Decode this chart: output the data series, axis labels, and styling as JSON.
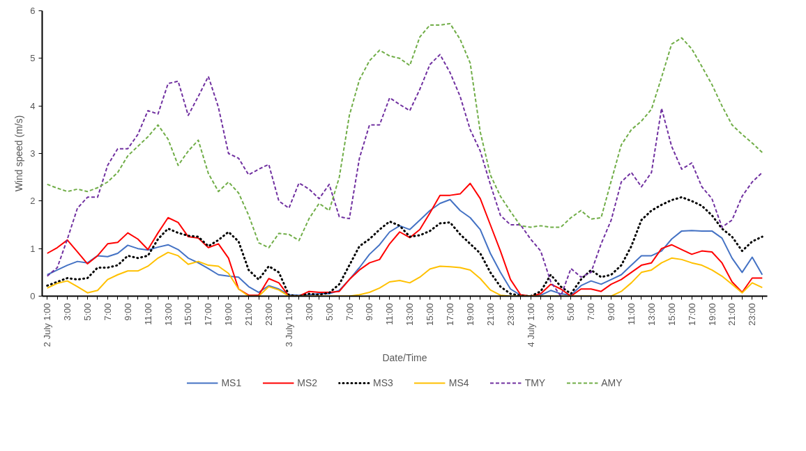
{
  "chart_data": {
    "type": "line",
    "xlabel": "Date/Time",
    "ylabel": "Wind speed (m/s)",
    "categories": [
      "2 July 1:00",
      null,
      "3:00",
      null,
      "5:00",
      null,
      "7:00",
      null,
      "9:00",
      null,
      "11:00",
      null,
      "13:00",
      null,
      "15:00",
      null,
      "17:00",
      null,
      "19:00",
      null,
      "21:00",
      null,
      "23:00",
      null,
      "3 July 1:00",
      null,
      "3:00",
      null,
      "5:00",
      null,
      "7:00",
      null,
      "9:00",
      null,
      "11:00",
      null,
      "13:00",
      null,
      "15:00",
      null,
      "17:00",
      null,
      "19:00",
      null,
      "21:00",
      null,
      "23:00",
      null,
      "4 July 1:00",
      null,
      "3:00",
      null,
      "5:00",
      null,
      "7:00",
      null,
      "9:00",
      null,
      "11:00",
      null,
      "13:00",
      null,
      "15:00",
      null,
      "17:00",
      null,
      "19:00",
      null,
      "21:00",
      null,
      "23:00",
      null
    ],
    "ylim": [
      0,
      6
    ],
    "yticks": [
      0,
      1,
      2,
      3,
      4,
      5,
      6
    ],
    "grid": false,
    "legend": "bottom",
    "marker": "none",
    "series": [
      {
        "name": "MS1",
        "color": "#4472c4",
        "line_style": "solid",
        "values": [
          0.45,
          0.55,
          0.65,
          0.73,
          0.7,
          0.85,
          0.83,
          0.9,
          1.07,
          1.0,
          0.97,
          1.03,
          1.08,
          0.98,
          0.8,
          0.7,
          0.58,
          0.45,
          0.42,
          0.4,
          0.2,
          0.08,
          0.22,
          0.15,
          0.03,
          0.02,
          0.03,
          0.05,
          0.05,
          0.12,
          0.35,
          0.6,
          0.88,
          1.08,
          1.35,
          1.48,
          1.4,
          1.6,
          1.8,
          1.95,
          2.03,
          1.8,
          1.65,
          1.4,
          0.9,
          0.5,
          0.15,
          0.02,
          0.0,
          0.02,
          0.12,
          0.05,
          0.02,
          0.22,
          0.32,
          0.25,
          0.35,
          0.45,
          0.65,
          0.85,
          0.85,
          0.95,
          1.2,
          1.37,
          1.38,
          1.37,
          1.37,
          1.22,
          0.8,
          0.5,
          0.82,
          0.45
        ]
      },
      {
        "name": "MS2",
        "color": "#ff0000",
        "line_style": "solid",
        "values": [
          0.9,
          1.02,
          1.18,
          0.93,
          0.68,
          0.85,
          1.1,
          1.13,
          1.33,
          1.2,
          0.98,
          1.33,
          1.65,
          1.55,
          1.25,
          1.22,
          1.02,
          1.1,
          0.8,
          0.15,
          0.02,
          0.02,
          0.37,
          0.28,
          0.0,
          0.0,
          0.1,
          0.08,
          0.08,
          0.1,
          0.35,
          0.55,
          0.7,
          0.77,
          1.1,
          1.35,
          1.23,
          1.4,
          1.75,
          2.12,
          2.12,
          2.15,
          2.37,
          2.05,
          1.5,
          0.95,
          0.35,
          0.03,
          0.0,
          0.05,
          0.25,
          0.15,
          0.0,
          0.15,
          0.15,
          0.1,
          0.25,
          0.35,
          0.5,
          0.65,
          0.7,
          1.0,
          1.08,
          0.98,
          0.88,
          0.95,
          0.93,
          0.7,
          0.3,
          0.08,
          0.38,
          0.38
        ]
      },
      {
        "name": "MS3",
        "color": "#000000",
        "line_style": "dotted",
        "values": [
          0.22,
          0.3,
          0.38,
          0.35,
          0.38,
          0.6,
          0.6,
          0.65,
          0.85,
          0.8,
          0.85,
          1.2,
          1.42,
          1.33,
          1.27,
          1.25,
          1.05,
          1.18,
          1.35,
          1.15,
          0.55,
          0.35,
          0.63,
          0.5,
          0.02,
          0.0,
          0.05,
          0.03,
          0.07,
          0.25,
          0.65,
          1.05,
          1.2,
          1.4,
          1.57,
          1.48,
          1.25,
          1.28,
          1.37,
          1.53,
          1.55,
          1.3,
          1.1,
          0.9,
          0.5,
          0.2,
          0.05,
          0.01,
          0.0,
          0.1,
          0.45,
          0.2,
          0.05,
          0.35,
          0.55,
          0.4,
          0.45,
          0.65,
          1.05,
          1.6,
          1.8,
          1.92,
          2.02,
          2.08,
          2.0,
          1.9,
          1.7,
          1.42,
          1.25,
          0.95,
          1.15,
          1.25
        ]
      },
      {
        "name": "MS4",
        "color": "#ffc000",
        "line_style": "solid",
        "values": [
          0.17,
          0.27,
          0.32,
          0.2,
          0.07,
          0.12,
          0.35,
          0.45,
          0.53,
          0.53,
          0.63,
          0.8,
          0.92,
          0.85,
          0.67,
          0.73,
          0.65,
          0.63,
          0.48,
          0.15,
          0.0,
          0.0,
          0.2,
          0.13,
          0.0,
          0.0,
          0.0,
          0.0,
          0.0,
          0.0,
          0.0,
          0.03,
          0.08,
          0.17,
          0.3,
          0.33,
          0.28,
          0.4,
          0.57,
          0.63,
          0.62,
          0.6,
          0.55,
          0.37,
          0.13,
          0.02,
          0.0,
          0.0,
          0.0,
          0.0,
          0.0,
          0.0,
          0.0,
          0.0,
          0.0,
          0.0,
          0.0,
          0.1,
          0.28,
          0.5,
          0.55,
          0.7,
          0.8,
          0.77,
          0.7,
          0.65,
          0.55,
          0.42,
          0.25,
          0.07,
          0.28,
          0.18
        ]
      },
      {
        "name": "TMY",
        "color": "#7030a0",
        "line_style": "dashed",
        "values": [
          0.42,
          0.6,
          1.2,
          1.85,
          2.08,
          2.08,
          2.75,
          3.1,
          3.1,
          3.4,
          3.9,
          3.83,
          4.47,
          4.52,
          3.8,
          4.2,
          4.62,
          3.97,
          3.0,
          2.9,
          2.55,
          2.67,
          2.77,
          2.0,
          1.85,
          2.38,
          2.25,
          2.05,
          2.35,
          1.67,
          1.63,
          2.9,
          3.6,
          3.6,
          4.17,
          4.03,
          3.9,
          4.35,
          4.87,
          5.08,
          4.7,
          4.2,
          3.5,
          3.05,
          2.35,
          1.7,
          1.5,
          1.5,
          1.2,
          0.95,
          0.3,
          0.0,
          0.58,
          0.4,
          0.5,
          1.1,
          1.6,
          2.4,
          2.6,
          2.3,
          2.6,
          3.95,
          3.15,
          2.67,
          2.8,
          2.3,
          2.05,
          1.45,
          1.6,
          2.1,
          2.4,
          2.6
        ]
      },
      {
        "name": "AMY",
        "color": "#70ad47",
        "line_style": "dashed",
        "values": [
          2.35,
          2.27,
          2.2,
          2.25,
          2.2,
          2.28,
          2.4,
          2.6,
          2.95,
          3.15,
          3.35,
          3.6,
          3.3,
          2.75,
          3.05,
          3.28,
          2.58,
          2.2,
          2.4,
          2.17,
          1.7,
          1.12,
          1.02,
          1.32,
          1.3,
          1.17,
          1.63,
          1.95,
          1.8,
          2.5,
          3.8,
          4.55,
          4.95,
          5.17,
          5.05,
          5.0,
          4.85,
          5.45,
          5.7,
          5.7,
          5.73,
          5.4,
          4.9,
          3.45,
          2.55,
          2.1,
          1.78,
          1.48,
          1.45,
          1.48,
          1.45,
          1.45,
          1.65,
          1.8,
          1.62,
          1.65,
          2.42,
          3.18,
          3.5,
          3.68,
          3.93,
          4.6,
          5.3,
          5.43,
          5.2,
          4.83,
          4.45,
          4.0,
          3.6,
          3.4,
          3.22,
          3.02
        ]
      }
    ]
  }
}
